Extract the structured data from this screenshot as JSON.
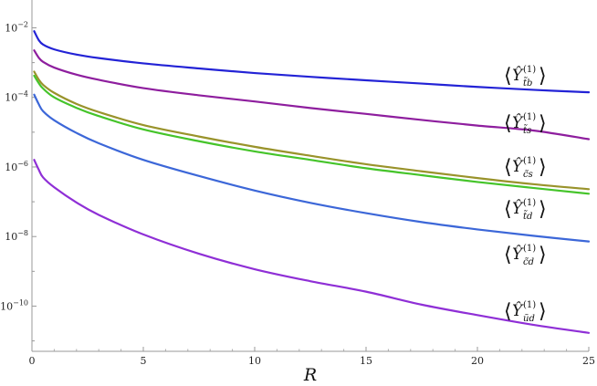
{
  "chart_data": {
    "type": "line",
    "title": "",
    "xlabel": "R",
    "ylabel": "",
    "xlim": [
      0,
      25
    ],
    "ylim_log10": [
      -11.3,
      -1.2
    ],
    "y_scale": "log",
    "grid": false,
    "x_ticks": [
      {
        "value": 0,
        "label": "0"
      },
      {
        "value": 5,
        "label": "5"
      },
      {
        "value": 10,
        "label": "10"
      },
      {
        "value": 15,
        "label": "15"
      },
      {
        "value": 20,
        "label": "20"
      },
      {
        "value": 25,
        "label": "25"
      }
    ],
    "y_ticks": [
      {
        "base": "10",
        "exp": "−2",
        "value": 0.01
      },
      {
        "base": "10",
        "exp": "−4",
        "value": 0.0001
      },
      {
        "base": "10",
        "exp": "−6",
        "value": 1e-06
      },
      {
        "base": "10",
        "exp": "−8",
        "value": 1e-08
      },
      {
        "base": "10",
        "exp": "−10",
        "value": 1e-10
      }
    ],
    "series": [
      {
        "label_main": "Ŷ",
        "label_sup": "(1)",
        "label_sub": "t̃b",
        "color": "#2323d6",
        "x": [
          0.1,
          0.3,
          0.5,
          1,
          2,
          3,
          5,
          7.5,
          10,
          12.5,
          15,
          17.5,
          20,
          22.5,
          25
        ],
        "y": [
          0.008,
          0.0045,
          0.0033,
          0.0024,
          0.0017,
          0.00135,
          0.00095,
          0.00068,
          0.0005,
          0.00039,
          0.00031,
          0.00025,
          0.0002,
          0.000165,
          0.00014
        ]
      },
      {
        "label_main": "Ŷ",
        "label_sup": "(1)",
        "label_sub": "t̃s",
        "color": "#8e1e9e",
        "x": [
          0.1,
          0.3,
          0.5,
          1,
          2,
          3,
          5,
          7.5,
          10,
          12.5,
          15,
          17.5,
          20,
          22.5,
          25
        ],
        "y": [
          0.00225,
          0.0014,
          0.00105,
          0.00072,
          0.00045,
          0.00032,
          0.000185,
          0.000115,
          7.65e-05,
          4.95e-05,
          3.35e-05,
          2.25e-05,
          1.55e-05,
          1.12e-05,
          6.3e-06
        ]
      },
      {
        "label_main": "Ŷ",
        "label_sup": "(1)",
        "label_sub": "c̃s",
        "color": "#99932b",
        "x": [
          0.1,
          0.3,
          0.5,
          1,
          2,
          3,
          5,
          7.5,
          10,
          12.5,
          15,
          17.5,
          20,
          22.5,
          25
        ],
        "y": [
          0.00055,
          0.00033,
          0.00023,
          0.000135,
          6.5e-05,
          3.8e-05,
          1.6e-05,
          7.5e-06,
          3.8e-06,
          2.1e-06,
          1.2e-06,
          7.5e-07,
          4.8e-07,
          3.2e-07,
          2.3e-07
        ]
      },
      {
        "label_main": "Ŷ",
        "label_sup": "(1)",
        "label_sub": "t̃d",
        "color": "#45c42a",
        "x": [
          0.1,
          0.3,
          0.5,
          1,
          2,
          3,
          5,
          7.5,
          10,
          12.5,
          15,
          17.5,
          20,
          22.5,
          25
        ],
        "y": [
          0.00042,
          0.00026,
          0.00018,
          0.0001,
          5e-05,
          2.9e-05,
          1.2e-05,
          5.5e-06,
          2.8e-06,
          1.6e-06,
          9.2e-07,
          5.8e-07,
          3.7e-07,
          2.5e-07,
          1.7e-07
        ]
      },
      {
        "label_main": "Ŷ",
        "label_sup": "(1)",
        "label_sub": "c̃d",
        "color": "#3c67d8",
        "x": [
          0.1,
          0.3,
          0.5,
          1,
          2,
          3,
          5,
          7.5,
          10,
          12.5,
          15,
          17.5,
          20,
          22.5,
          25
        ],
        "y": [
          0.00012,
          6.5e-05,
          4e-05,
          2.2e-05,
          9.5e-06,
          4.8e-06,
          1.6e-06,
          5.5e-07,
          2.1e-07,
          9.3e-08,
          4.7e-08,
          2.6e-08,
          1.6e-08,
          1.05e-08,
          7.2e-09
        ]
      },
      {
        "label_main": "Ŷ",
        "label_sup": "(1)",
        "label_sub": "ũd",
        "color": "#8f2fd6",
        "x": [
          0.1,
          0.3,
          0.5,
          1,
          2,
          3,
          5,
          7.5,
          10,
          12.5,
          15,
          17.5,
          20,
          22.5,
          25
        ],
        "y": [
          1.6e-06,
          8.5e-07,
          5e-07,
          2.6e-07,
          9.5e-08,
          4.2e-08,
          1.15e-08,
          3.2e-09,
          1.15e-09,
          5.2e-10,
          2.6e-10,
          1.1e-10,
          5.5e-11,
          2.9e-11,
          1.7e-11
        ]
      }
    ]
  }
}
